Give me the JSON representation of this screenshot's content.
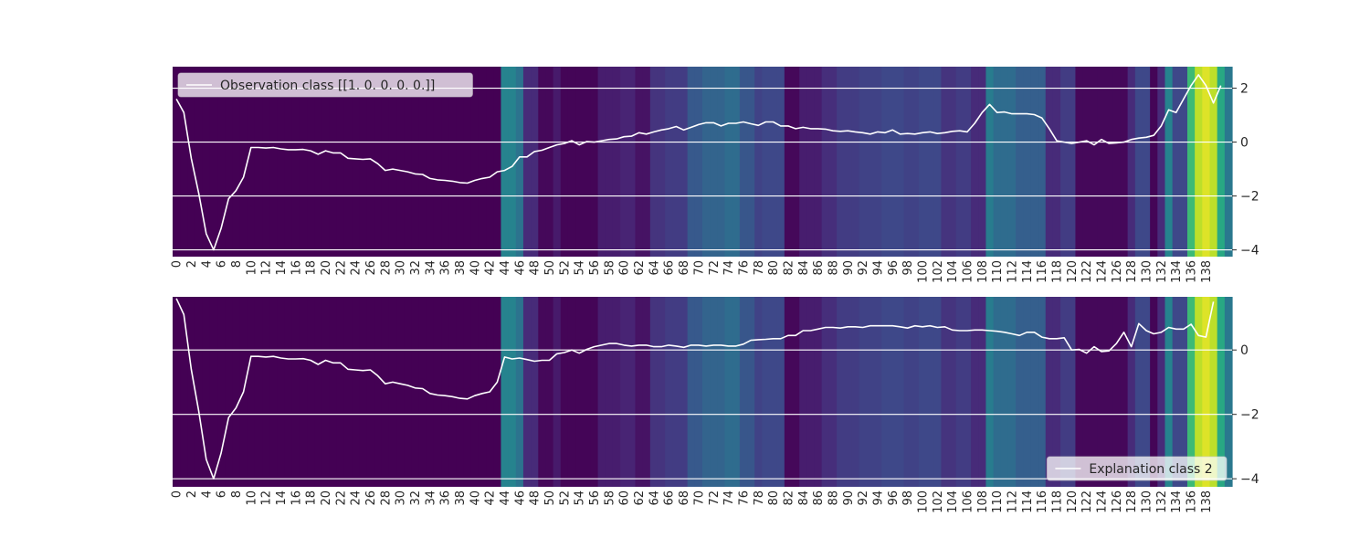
{
  "chart_data": [
    {
      "type": "line",
      "chart_kind": "heatmap-with-line",
      "colormap": "viridis",
      "legend": {
        "label": "Observation class [[1. 0. 0. 0. 0.]]",
        "placement": "upper left"
      },
      "x_ticks": [
        0,
        2,
        4,
        6,
        8,
        10,
        12,
        14,
        16,
        18,
        20,
        22,
        24,
        26,
        28,
        30,
        32,
        34,
        36,
        38,
        40,
        42,
        44,
        46,
        48,
        50,
        52,
        54,
        56,
        58,
        60,
        62,
        64,
        66,
        68,
        70,
        72,
        74,
        76,
        78,
        80,
        82,
        84,
        86,
        88,
        90,
        92,
        94,
        96,
        98,
        100,
        102,
        104,
        106,
        108,
        110,
        112,
        114,
        116,
        118,
        120,
        122,
        124,
        126,
        128,
        130,
        132,
        134,
        136,
        138
      ],
      "y_ticks": [
        2,
        0,
        -2,
        -4
      ],
      "ylim": [
        -4.25,
        2.8
      ],
      "grid": true,
      "series": [
        {
          "values": [
            1.6,
            1.1,
            -0.6,
            -1.9,
            -3.4,
            -4.0,
            -3.2,
            -2.1,
            -1.8,
            -1.3,
            -0.2,
            -0.2,
            -0.22,
            -0.2,
            -0.25,
            -0.28,
            -0.28,
            -0.27,
            -0.32,
            -0.45,
            -0.32,
            -0.4,
            -0.4,
            -0.6,
            -0.62,
            -0.64,
            -0.62,
            -0.8,
            -1.05,
            -1.0,
            -1.05,
            -1.1,
            -1.18,
            -1.2,
            -1.35,
            -1.4,
            -1.42,
            -1.45,
            -1.5,
            -1.52,
            -1.42,
            -1.35,
            -1.3,
            -1.1,
            -1.05,
            -0.9,
            -0.55,
            -0.55,
            -0.35,
            -0.3,
            -0.2,
            -0.1,
            -0.05,
            0.05,
            -0.1,
            0.02,
            0.0,
            0.05,
            0.1,
            0.12,
            0.2,
            0.22,
            0.35,
            0.3,
            0.38,
            0.45,
            0.5,
            0.58,
            0.45,
            0.55,
            0.65,
            0.72,
            0.72,
            0.6,
            0.7,
            0.7,
            0.75,
            0.68,
            0.62,
            0.75,
            0.75,
            0.6,
            0.6,
            0.5,
            0.55,
            0.5,
            0.5,
            0.48,
            0.42,
            0.4,
            0.42,
            0.38,
            0.35,
            0.3,
            0.38,
            0.35,
            0.45,
            0.3,
            0.32,
            0.3,
            0.35,
            0.38,
            0.32,
            0.35,
            0.4,
            0.42,
            0.38,
            0.7,
            1.1,
            1.4,
            1.1,
            1.12,
            1.05,
            1.05,
            1.05,
            1.02,
            0.9,
            0.5,
            0.05,
            0.0,
            -0.05,
            0.0,
            0.05,
            -0.1,
            0.1,
            -0.05,
            -0.03,
            0.0,
            0.1,
            0.15,
            0.18,
            0.25,
            0.6,
            1.2,
            1.1,
            1.6,
            2.1,
            2.5,
            2.1,
            1.45,
            2.1
          ]
        }
      ],
      "heat_values": [
        0,
        0,
        0,
        0,
        0,
        0,
        0,
        0,
        0,
        0,
        0,
        0,
        0,
        0,
        0,
        0,
        0,
        0,
        0,
        0,
        0,
        0,
        0,
        0,
        0,
        0,
        0,
        0,
        0,
        0,
        0,
        0,
        0,
        0,
        0,
        0,
        0,
        0,
        0,
        0,
        0,
        0,
        0,
        0,
        0.45,
        0.45,
        0.38,
        0.12,
        0.12,
        0.02,
        0.02,
        0.07,
        0.01,
        0.01,
        0.01,
        0.01,
        0.01,
        0.08,
        0.08,
        0.08,
        0.1,
        0.1,
        0.05,
        0.05,
        0.15,
        0.15,
        0.18,
        0.18,
        0.18,
        0.28,
        0.28,
        0.32,
        0.32,
        0.32,
        0.35,
        0.35,
        0.27,
        0.27,
        0.2,
        0.22,
        0.22,
        0.22,
        0.02,
        0.02,
        0.08,
        0.08,
        0.08,
        0.13,
        0.13,
        0.18,
        0.18,
        0.18,
        0.2,
        0.2,
        0.2,
        0.22,
        0.22,
        0.22,
        0.2,
        0.2,
        0.22,
        0.22,
        0.22,
        0.15,
        0.15,
        0.18,
        0.18,
        0.12,
        0.12,
        0.42,
        0.35,
        0.35,
        0.35,
        0.3,
        0.3,
        0.3,
        0.3,
        0.12,
        0.12,
        0.18,
        0.18,
        0.02,
        0.02,
        0.02,
        0.02,
        0.02,
        0.02,
        0.02,
        0.12,
        0.22,
        0.22,
        0.01,
        0.12,
        0.45,
        0.22,
        0.22,
        0.68,
        0.9,
        0.95,
        0.9,
        0.6,
        0.4
      ]
    },
    {
      "type": "line",
      "chart_kind": "heatmap-with-line",
      "colormap": "viridis",
      "legend": {
        "label": "Explanation class 2",
        "placement": "lower right"
      },
      "x_ticks": [
        0,
        2,
        4,
        6,
        8,
        10,
        12,
        14,
        16,
        18,
        20,
        22,
        24,
        26,
        28,
        30,
        32,
        34,
        36,
        38,
        40,
        42,
        44,
        46,
        48,
        50,
        52,
        54,
        56,
        58,
        60,
        62,
        64,
        66,
        68,
        70,
        72,
        74,
        76,
        78,
        80,
        82,
        84,
        86,
        88,
        90,
        92,
        94,
        96,
        98,
        100,
        102,
        104,
        106,
        108,
        110,
        112,
        114,
        116,
        118,
        120,
        122,
        124,
        126,
        128,
        130,
        132,
        134,
        136,
        138
      ],
      "y_ticks": [
        0,
        -2,
        -4
      ],
      "ylim": [
        -4.25,
        1.65
      ],
      "grid": true,
      "series": [
        {
          "values": [
            1.6,
            1.1,
            -0.6,
            -1.9,
            -3.4,
            -4.0,
            -3.2,
            -2.1,
            -1.8,
            -1.3,
            -0.2,
            -0.2,
            -0.22,
            -0.2,
            -0.25,
            -0.28,
            -0.28,
            -0.27,
            -0.32,
            -0.45,
            -0.32,
            -0.4,
            -0.4,
            -0.6,
            -0.62,
            -0.64,
            -0.62,
            -0.8,
            -1.05,
            -1.0,
            -1.05,
            -1.1,
            -1.18,
            -1.2,
            -1.35,
            -1.4,
            -1.42,
            -1.45,
            -1.5,
            -1.52,
            -1.42,
            -1.35,
            -1.3,
            -1.0,
            -0.22,
            -0.28,
            -0.25,
            -0.3,
            -0.35,
            -0.32,
            -0.32,
            -0.12,
            -0.08,
            0.0,
            -0.1,
            0.02,
            0.1,
            0.15,
            0.2,
            0.2,
            0.15,
            0.12,
            0.15,
            0.15,
            0.1,
            0.1,
            0.15,
            0.12,
            0.08,
            0.15,
            0.15,
            0.12,
            0.15,
            0.15,
            0.12,
            0.12,
            0.18,
            0.3,
            0.32,
            0.33,
            0.35,
            0.35,
            0.45,
            0.45,
            0.6,
            0.6,
            0.65,
            0.7,
            0.7,
            0.68,
            0.72,
            0.72,
            0.7,
            0.75,
            0.75,
            0.75,
            0.75,
            0.72,
            0.68,
            0.75,
            0.72,
            0.75,
            0.7,
            0.72,
            0.62,
            0.6,
            0.6,
            0.62,
            0.62,
            0.6,
            0.58,
            0.55,
            0.5,
            0.45,
            0.55,
            0.55,
            0.4,
            0.35,
            0.35,
            0.38,
            0.0,
            0.02,
            -0.1,
            0.1,
            -0.05,
            -0.03,
            0.2,
            0.55,
            0.1,
            0.82,
            0.6,
            0.5,
            0.55,
            0.7,
            0.65,
            0.65,
            0.8,
            0.45,
            0.4,
            1.5
          ]
        }
      ],
      "heat_values": [
        0,
        0,
        0,
        0,
        0,
        0,
        0,
        0,
        0,
        0,
        0,
        0,
        0,
        0,
        0,
        0,
        0,
        0,
        0,
        0,
        0,
        0,
        0,
        0,
        0,
        0,
        0,
        0,
        0,
        0,
        0,
        0,
        0,
        0,
        0,
        0,
        0,
        0,
        0,
        0,
        0,
        0,
        0,
        0,
        0.45,
        0.45,
        0.38,
        0.12,
        0.12,
        0.02,
        0.02,
        0.07,
        0.01,
        0.01,
        0.01,
        0.01,
        0.01,
        0.08,
        0.08,
        0.08,
        0.1,
        0.1,
        0.05,
        0.05,
        0.15,
        0.15,
        0.18,
        0.18,
        0.18,
        0.28,
        0.28,
        0.32,
        0.32,
        0.32,
        0.35,
        0.35,
        0.27,
        0.27,
        0.2,
        0.22,
        0.22,
        0.22,
        0.02,
        0.02,
        0.08,
        0.08,
        0.08,
        0.13,
        0.13,
        0.18,
        0.18,
        0.18,
        0.2,
        0.2,
        0.2,
        0.22,
        0.22,
        0.22,
        0.2,
        0.2,
        0.22,
        0.22,
        0.22,
        0.15,
        0.15,
        0.18,
        0.18,
        0.12,
        0.12,
        0.42,
        0.35,
        0.35,
        0.35,
        0.3,
        0.3,
        0.3,
        0.3,
        0.12,
        0.12,
        0.18,
        0.18,
        0.02,
        0.02,
        0.02,
        0.02,
        0.02,
        0.02,
        0.02,
        0.12,
        0.22,
        0.22,
        0.01,
        0.12,
        0.45,
        0.22,
        0.22,
        0.68,
        0.9,
        0.95,
        0.9,
        0.6,
        0.4
      ]
    }
  ]
}
